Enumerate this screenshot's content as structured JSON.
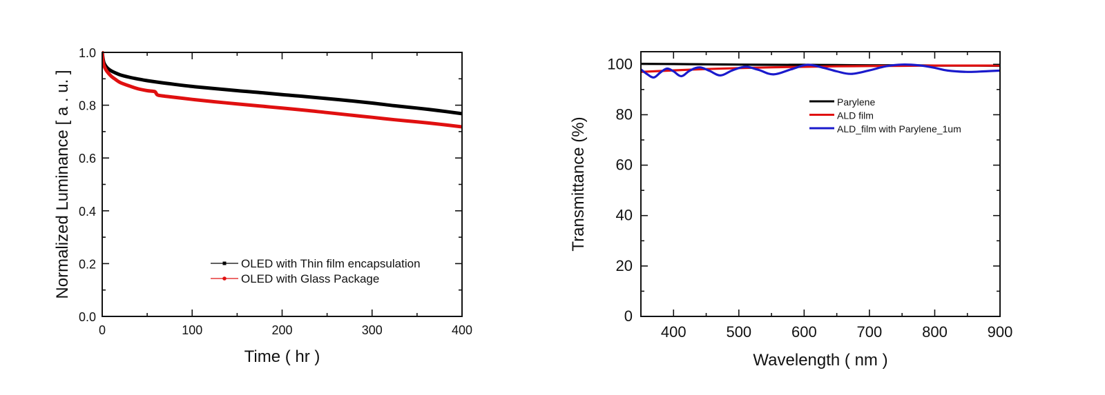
{
  "chart_data": [
    {
      "type": "line",
      "title": "",
      "xlabel": "Time ( hr )",
      "ylabel": "Normalized Luminance  [ a . u. ]",
      "xlim": [
        0,
        400
      ],
      "ylim": [
        0.0,
        1.0
      ],
      "xticks": [
        0,
        100,
        200,
        300,
        400
      ],
      "xtick_labels": [
        "0",
        "100",
        "200",
        "300",
        "400"
      ],
      "xminor": [
        50,
        150,
        250,
        350
      ],
      "yticks": [
        0.0,
        0.2,
        0.4,
        0.6,
        0.8,
        1.0
      ],
      "ytick_labels": [
        "0.0",
        "0.2",
        "0.4",
        "0.6",
        "0.8",
        "1.0"
      ],
      "yminor": [
        0.1,
        0.3,
        0.5,
        0.7,
        0.9
      ],
      "grid": false,
      "legend_position": "bottom-right",
      "series": [
        {
          "name": "OLED with Thin film encapsulation",
          "color": "#000000",
          "marker": "square",
          "x": [
            0,
            1,
            2,
            4,
            6,
            10,
            15,
            20,
            30,
            40,
            50,
            60,
            80,
            100,
            125,
            150,
            175,
            200,
            225,
            250,
            275,
            300,
            325,
            350,
            375,
            400
          ],
          "y": [
            1.0,
            0.975,
            0.96,
            0.948,
            0.94,
            0.93,
            0.922,
            0.915,
            0.906,
            0.899,
            0.893,
            0.888,
            0.879,
            0.871,
            0.863,
            0.855,
            0.848,
            0.84,
            0.833,
            0.825,
            0.817,
            0.808,
            0.798,
            0.789,
            0.779,
            0.768
          ]
        },
        {
          "name": "OLED with Glass Package",
          "color": "#e01010",
          "marker": "circle",
          "x": [
            0,
            1,
            2,
            4,
            6,
            10,
            15,
            20,
            30,
            40,
            50,
            58,
            60,
            62,
            70,
            80,
            100,
            125,
            150,
            175,
            200,
            225,
            250,
            275,
            300,
            325,
            350,
            375,
            400
          ],
          "y": [
            1.0,
            0.965,
            0.95,
            0.935,
            0.925,
            0.91,
            0.897,
            0.886,
            0.873,
            0.862,
            0.855,
            0.852,
            0.845,
            0.838,
            0.834,
            0.83,
            0.822,
            0.813,
            0.805,
            0.797,
            0.789,
            0.781,
            0.772,
            0.763,
            0.754,
            0.745,
            0.737,
            0.728,
            0.718
          ]
        }
      ]
    },
    {
      "type": "line",
      "title": "",
      "xlabel": "Wavelength ( nm )",
      "ylabel": "Transmittance (%)",
      "xlim": [
        350,
        900
      ],
      "ylim": [
        0,
        105
      ],
      "xticks": [
        400,
        500,
        600,
        700,
        800,
        900
      ],
      "xtick_labels": [
        "400",
        "500",
        "600",
        "700",
        "800",
        "900"
      ],
      "xminor": [
        450,
        550,
        650,
        750,
        850
      ],
      "yticks": [
        0,
        20,
        40,
        60,
        80,
        100
      ],
      "ytick_labels": [
        "0",
        "20",
        "40",
        "60",
        "80",
        "100"
      ],
      "yminor": [
        10,
        30,
        50,
        70,
        90
      ],
      "grid": false,
      "legend_position": "top-right",
      "series": [
        {
          "name": "Parylene",
          "color": "#000000",
          "x": [
            350,
            400,
            450,
            500,
            550,
            600,
            650,
            700,
            750,
            800,
            850,
            900
          ],
          "y": [
            100.2,
            100.1,
            100.0,
            99.9,
            99.8,
            99.8,
            99.7,
            99.6,
            99.6,
            99.5,
            99.5,
            99.4
          ]
        },
        {
          "name": "ALD film",
          "color": "#e01010",
          "x": [
            350,
            400,
            450,
            500,
            550,
            600,
            650,
            700,
            750,
            800,
            850,
            900
          ],
          "y": [
            97.0,
            97.6,
            98.1,
            98.5,
            98.8,
            99.0,
            99.2,
            99.3,
            99.4,
            99.5,
            99.5,
            99.5
          ]
        },
        {
          "name": "ALD_film with Parylene_1um",
          "color": "#1a1acc",
          "x": [
            350,
            360,
            370,
            380,
            390,
            400,
            412,
            425,
            440,
            455,
            472,
            490,
            510,
            530,
            553,
            580,
            605,
            630,
            650,
            672,
            700,
            725,
            750,
            775,
            800,
            820,
            850,
            875,
            900
          ],
          "y": [
            98.0,
            96.0,
            94.8,
            96.8,
            98.3,
            97.2,
            95.3,
            97.5,
            98.8,
            97.4,
            95.6,
            97.6,
            99.0,
            97.8,
            96.0,
            98.0,
            99.8,
            98.6,
            97.2,
            96.2,
            97.6,
            99.2,
            99.9,
            99.6,
            98.6,
            97.5,
            97.0,
            97.2,
            97.5
          ]
        }
      ]
    }
  ]
}
